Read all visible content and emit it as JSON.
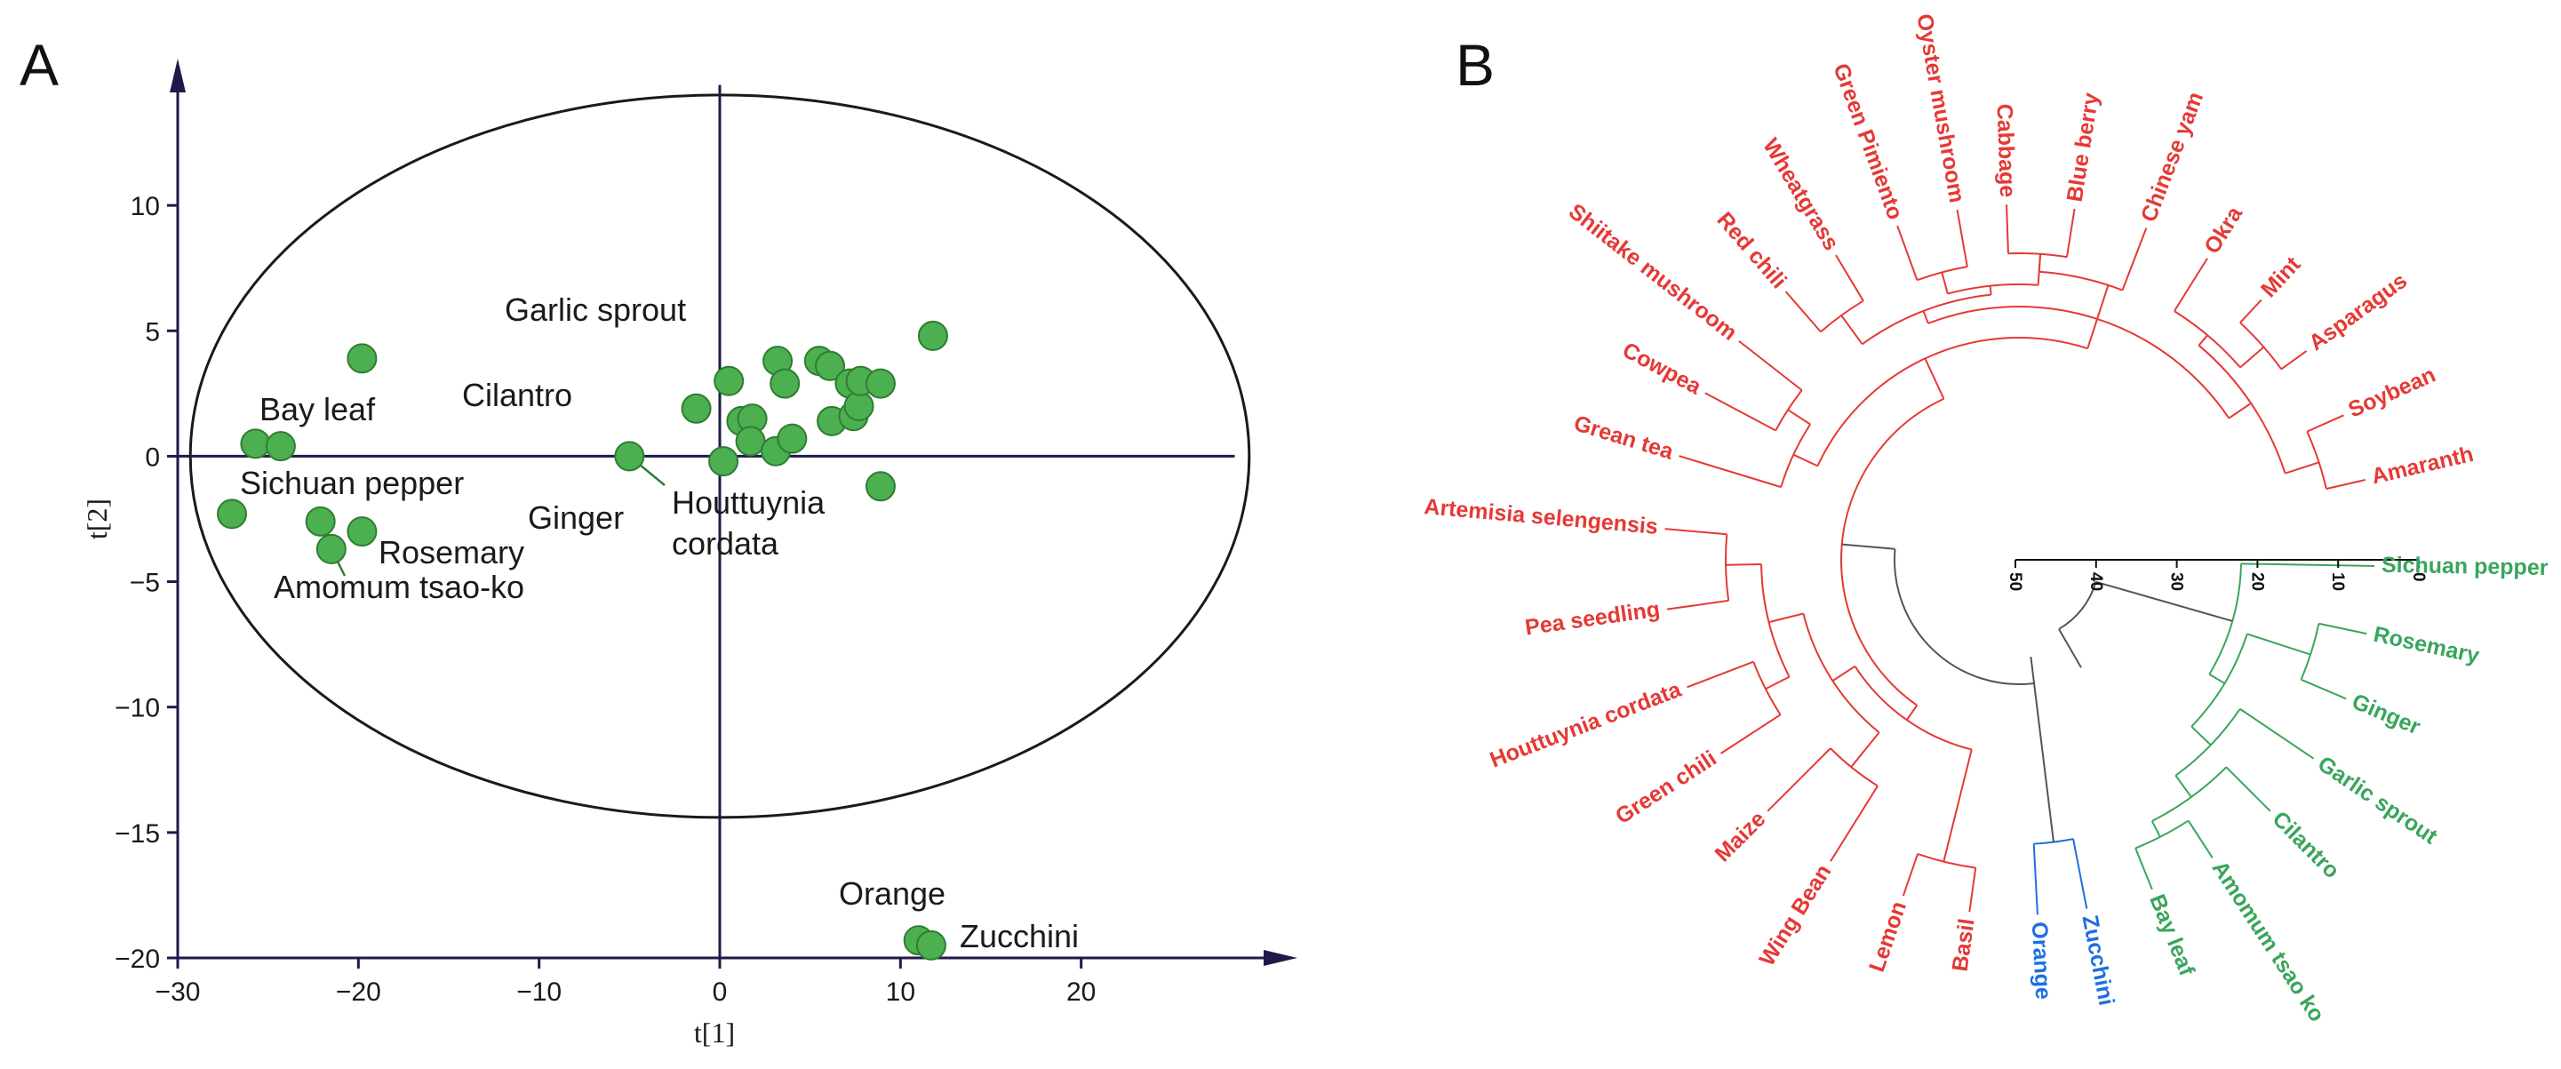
{
  "panel_labels": {
    "a": "A",
    "b": "B"
  },
  "colors": {
    "point": "#4caf50",
    "point_edge": "#2e7d32",
    "red": "#e53935",
    "green": "#3aa55c",
    "blue": "#1e6fe0",
    "axis": "#1f1a4a",
    "link": "#555555"
  },
  "chart_data": [
    {
      "type": "scatter",
      "title": "",
      "xlabel": "t[1]",
      "ylabel": "t[2]",
      "xlim": [
        -30,
        30
      ],
      "ylim": [
        -20,
        15
      ],
      "xticks": [
        -30,
        -20,
        -10,
        0,
        10,
        20
      ],
      "yticks": [
        -20,
        -15,
        -10,
        -5,
        0,
        5,
        10
      ],
      "ellipse": {
        "center": [
          0,
          0
        ],
        "rx": 29.3,
        "ry": 14.4
      },
      "points": [
        {
          "x": -27.0,
          "y": -2.3,
          "label": ""
        },
        {
          "x": -25.7,
          "y": 0.5,
          "label": "Bay leaf"
        },
        {
          "x": -21.5,
          "y": -3.7,
          "label": ""
        },
        {
          "x": -19.8,
          "y": -3.0,
          "label": ""
        },
        {
          "x": -24.3,
          "y": 0.4,
          "label": "Cilantro"
        },
        {
          "x": -22.1,
          "y": -2.6,
          "label": "Ginger"
        },
        {
          "x": -19.8,
          "y": 3.9,
          "label": "Garlic sprout"
        },
        {
          "x": -5.0,
          "y": 0.0,
          "label": ""
        },
        {
          "x": -1.3,
          "y": 1.9,
          "label": ""
        },
        {
          "x": 0.5,
          "y": 3.0,
          "label": ""
        },
        {
          "x": 0.2,
          "y": -0.2,
          "label": ""
        },
        {
          "x": 1.2,
          "y": 1.4,
          "label": ""
        },
        {
          "x": 1.8,
          "y": 1.5,
          "label": ""
        },
        {
          "x": 1.7,
          "y": 0.6,
          "label": ""
        },
        {
          "x": 3.2,
          "y": 3.8,
          "label": ""
        },
        {
          "x": 3.6,
          "y": 2.9,
          "label": ""
        },
        {
          "x": 3.1,
          "y": 0.2,
          "label": ""
        },
        {
          "x": 4.0,
          "y": 0.7,
          "label": ""
        },
        {
          "x": 5.5,
          "y": 3.8,
          "label": ""
        },
        {
          "x": 6.1,
          "y": 3.6,
          "label": ""
        },
        {
          "x": 6.2,
          "y": 1.4,
          "label": ""
        },
        {
          "x": 7.2,
          "y": 2.9,
          "label": ""
        },
        {
          "x": 7.4,
          "y": 1.6,
          "label": ""
        },
        {
          "x": 7.7,
          "y": 2.0,
          "label": ""
        },
        {
          "x": 7.8,
          "y": 3.0,
          "label": ""
        },
        {
          "x": 8.9,
          "y": 2.9,
          "label": ""
        },
        {
          "x": 11.8,
          "y": 4.8,
          "label": ""
        },
        {
          "x": 8.9,
          "y": -1.2,
          "label": ""
        },
        {
          "x": 11.0,
          "y": -19.3,
          "label": ""
        },
        {
          "x": 11.7,
          "y": -19.5,
          "label": ""
        }
      ],
      "annotations": [
        "Sichuan pepper",
        "Rosemary",
        "Amomum tsao-ko",
        "Houttuynia",
        "cordata",
        "Orange",
        "Zucchini"
      ]
    },
    {
      "type": "dendrogram",
      "layout": "circular",
      "scale_ticks": [
        50,
        40,
        30,
        20,
        10,
        0
      ],
      "clusters": [
        {
          "color": "red",
          "leaves": [
            "Artemisia selengensis",
            "Pea seedling",
            "Houttuynia cordata",
            "Green chili",
            "Maize",
            "Wing Bean",
            "Lemon",
            "Basil",
            "Amaranth",
            "Soybean",
            "Asparagus",
            "Mint",
            "Okra",
            "Chinese yam",
            "Blue berry",
            "Cabbage",
            "Oyster mushroom",
            "Green Pimiento",
            "Wheatgrass",
            "Red chili",
            "Shiitake mushroom",
            "Cowpea",
            "Grean tea"
          ]
        },
        {
          "color": "blue",
          "leaves": [
            "Orange",
            "Zucchini"
          ]
        },
        {
          "color": "green",
          "leaves": [
            "Sichuan pepper",
            "Rosemary",
            "Ginger",
            "Garlic sprout",
            "Cilantro",
            "Amomum tsao ko",
            "Bay leaf"
          ]
        }
      ]
    }
  ]
}
